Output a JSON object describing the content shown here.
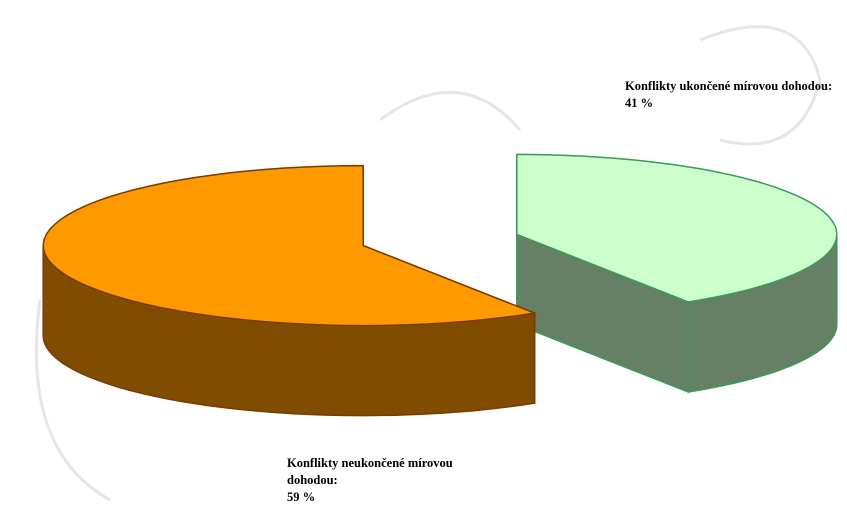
{
  "chart_data": {
    "type": "pie3d",
    "categories": [
      "Konflikty ukončené mírovou dohodou:",
      "Konflikty neukončené mírovou dohodou:"
    ],
    "values": [
      41,
      59
    ],
    "value_labels": [
      "41 %",
      "59 %"
    ],
    "colors": [
      "#ccffcc",
      "#ff9900"
    ],
    "edge_colors": [
      "#3a9a5a",
      "#7a3a00"
    ]
  }
}
